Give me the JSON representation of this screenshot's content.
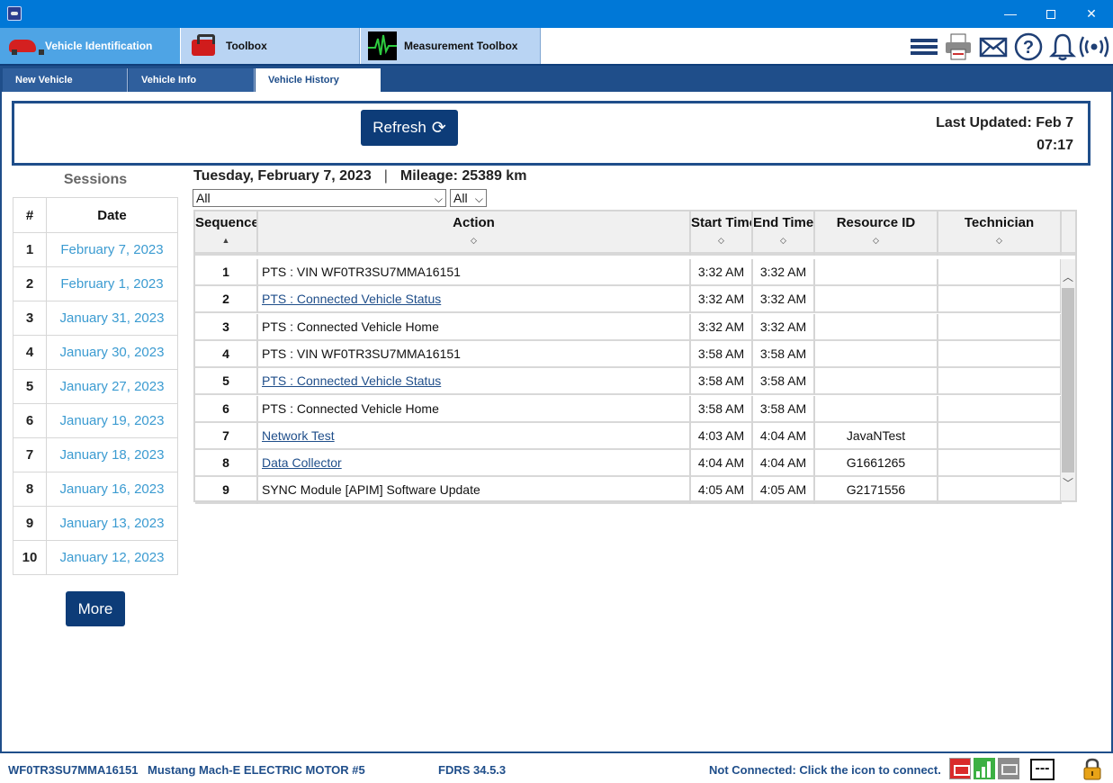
{
  "window": {
    "minimize_glyph": "—",
    "close_glyph": "✕"
  },
  "modules": [
    {
      "label": "Vehicle Identification",
      "icon": "car-icon"
    },
    {
      "label": "Toolbox",
      "icon": "toolbox-icon"
    },
    {
      "label": "Measurement Toolbox",
      "icon": "oscilloscope-icon"
    }
  ],
  "toolbar_icons": [
    "menu-icon",
    "printer-icon",
    "mail-icon",
    "help-icon",
    "bell-icon",
    "wireless-icon"
  ],
  "subtabs": [
    {
      "label": "New Vehicle"
    },
    {
      "label": "Vehicle Info"
    },
    {
      "label": "Vehicle History",
      "active": true
    }
  ],
  "refresh": {
    "label": "Refresh",
    "icon": "refresh-icon",
    "last_updated_line1": "Last Updated: Feb 7",
    "last_updated_line2": "07:17"
  },
  "sessions": {
    "title": "Sessions",
    "col_num": "#",
    "col_date": "Date",
    "rows": [
      {
        "num": "1",
        "date": "February 7, 2023"
      },
      {
        "num": "2",
        "date": "February 1, 2023"
      },
      {
        "num": "3",
        "date": "January 31, 2023"
      },
      {
        "num": "4",
        "date": "January 30, 2023"
      },
      {
        "num": "5",
        "date": "January 27, 2023"
      },
      {
        "num": "6",
        "date": "January 19, 2023"
      },
      {
        "num": "7",
        "date": "January 18, 2023"
      },
      {
        "num": "8",
        "date": "January 16, 2023"
      },
      {
        "num": "9",
        "date": "January 13, 2023"
      },
      {
        "num": "10",
        "date": "January 12, 2023"
      }
    ],
    "more_label": "More"
  },
  "main": {
    "date_heading": "Tuesday, February 7, 2023",
    "separator": "|",
    "mileage": "Mileage: 25389 km",
    "filter_action": "All",
    "filter_other": "All"
  },
  "grid": {
    "columns": [
      "Sequence",
      "Action",
      "Start Time",
      "End Time",
      "Resource ID",
      "Technician"
    ],
    "rows": [
      {
        "seq": "1",
        "action": "PTS : VIN WF0TR3SU7MMA16151",
        "link": false,
        "start": "3:32 AM",
        "end": "3:32 AM",
        "resource": "",
        "tech": ""
      },
      {
        "seq": "2",
        "action": "PTS : Connected Vehicle Status",
        "link": true,
        "start": "3:32 AM",
        "end": "3:32 AM",
        "resource": "",
        "tech": ""
      },
      {
        "seq": "3",
        "action": "PTS : Connected Vehicle Home",
        "link": false,
        "start": "3:32 AM",
        "end": "3:32 AM",
        "resource": "",
        "tech": ""
      },
      {
        "seq": "4",
        "action": "PTS : VIN WF0TR3SU7MMA16151",
        "link": false,
        "start": "3:58 AM",
        "end": "3:58 AM",
        "resource": "",
        "tech": ""
      },
      {
        "seq": "5",
        "action": "PTS : Connected Vehicle Status",
        "link": true,
        "start": "3:58 AM",
        "end": "3:58 AM",
        "resource": "",
        "tech": ""
      },
      {
        "seq": "6",
        "action": "PTS : Connected Vehicle Home",
        "link": false,
        "start": "3:58 AM",
        "end": "3:58 AM",
        "resource": "",
        "tech": ""
      },
      {
        "seq": "7",
        "action": "Network Test",
        "link": true,
        "start": "4:03 AM",
        "end": "4:04 AM",
        "resource": "JavaNTest",
        "tech": ""
      },
      {
        "seq": "8",
        "action": "Data Collector",
        "link": true,
        "start": "4:04 AM",
        "end": "4:04 AM",
        "resource": "G1661265",
        "tech": ""
      },
      {
        "seq": "9",
        "action": "SYNC Module [APIM] Software Update",
        "link": false,
        "start": "4:05 AM",
        "end": "4:05 AM",
        "resource": "G2171556",
        "tech": ""
      }
    ]
  },
  "status": {
    "vin": "WF0TR3SU7MMA16151",
    "model": "Mustang Mach-E ELECTRIC MOTOR #5",
    "version": "FDRS 34.5.3",
    "connection": "Not Connected: Click the icon to connect.",
    "dash": "---"
  },
  "colors": {
    "accent": "#1f4e8a",
    "button": "#0d3c78",
    "date_link": "#3b9bd1",
    "titlebar": "#0078d7"
  }
}
